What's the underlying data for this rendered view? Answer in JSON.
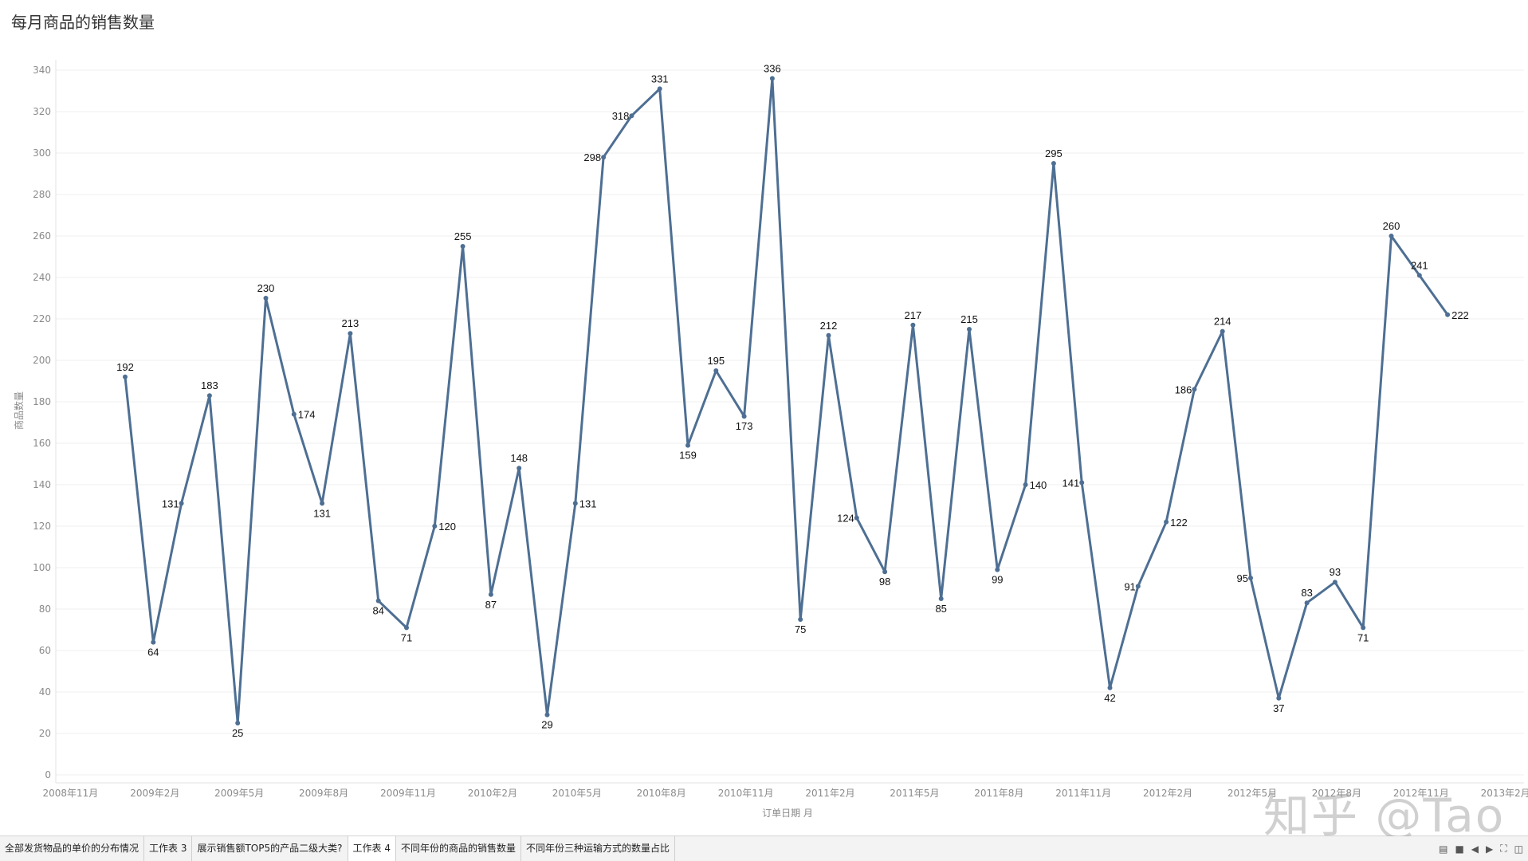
{
  "title": "每月商品的销售数量",
  "chart_data": {
    "type": "line",
    "title": "每月商品的销售数量",
    "xlabel": "订单日期 月",
    "ylabel": "商品数量",
    "ylim": [
      0,
      350
    ],
    "yticks": [
      0,
      20,
      40,
      60,
      80,
      100,
      120,
      140,
      160,
      180,
      200,
      220,
      240,
      260,
      280,
      300,
      320,
      340
    ],
    "x": [
      "2009年1月",
      "2009年2月",
      "2009年3月",
      "2009年4月",
      "2009年5月",
      "2009年6月",
      "2009年7月",
      "2009年8月",
      "2009年9月",
      "2009年10月",
      "2009年11月",
      "2009年12月",
      "2010年1月",
      "2010年2月",
      "2010年3月",
      "2010年4月",
      "2010年5月",
      "2010年6月",
      "2010年7月",
      "2010年8月",
      "2010年9月",
      "2010年10月",
      "2010年11月",
      "2010年12月",
      "2011年1月",
      "2011年2月",
      "2011年3月",
      "2011年4月",
      "2011年5月",
      "2011年6月",
      "2011年7月",
      "2011年8月",
      "2011年9月",
      "2011年10月",
      "2011年11月",
      "2011年12月",
      "2012年1月",
      "2012年2月",
      "2012年3月",
      "2012年4月",
      "2012年5月",
      "2012年6月",
      "2012年7月",
      "2012年8月",
      "2012年9月",
      "2012年10月",
      "2012年11月",
      "2012年12月"
    ],
    "values": [
      192,
      64,
      131,
      183,
      25,
      230,
      174,
      131,
      213,
      84,
      71,
      120,
      255,
      87,
      148,
      29,
      131,
      298,
      318,
      331,
      159,
      195,
      173,
      336,
      75,
      212,
      124,
      98,
      217,
      85,
      215,
      99,
      140,
      295,
      141,
      42,
      91,
      122,
      186,
      214,
      95,
      37,
      83,
      93,
      71,
      260,
      241,
      222
    ],
    "label_pos": [
      "t",
      "b",
      "l",
      "t",
      "b",
      "t",
      "r",
      "b",
      "t",
      "b",
      "b",
      "r",
      "t",
      "b",
      "t",
      "b",
      "r",
      "l",
      "l",
      "t",
      "b",
      "t",
      "b",
      "t",
      "b",
      "t",
      "l",
      "b",
      "t",
      "b",
      "t",
      "b",
      "r",
      "t",
      "l",
      "b",
      "l",
      "r",
      "l",
      "t",
      "l",
      "b",
      "t",
      "t",
      "b",
      "t",
      "t",
      "r"
    ],
    "xticks": [
      "2008年11月",
      "2009年2月",
      "2009年5月",
      "2009年8月",
      "2009年11月",
      "2010年2月",
      "2010年5月",
      "2010年8月",
      "2010年11月",
      "2011年2月",
      "2011年5月",
      "2011年8月",
      "2011年11月",
      "2012年2月",
      "2012年5月",
      "2012年8月",
      "2012年11月",
      "2013年2月"
    ],
    "line_color": "#4e6f93",
    "grid": true
  },
  "tabs": [
    {
      "label": "全部发货物品的单价的分布情况",
      "active": false
    },
    {
      "label": "工作表 3",
      "active": false
    },
    {
      "label": "展示销售额TOP5的产品二级大类?",
      "active": false
    },
    {
      "label": "工作表 4",
      "active": true
    },
    {
      "label": "不同年份的商品的销售数量",
      "active": false
    },
    {
      "label": "不同年份三种运输方式的数量占比",
      "active": false
    }
  ],
  "nav_icons": [
    "grid-view-icon",
    "filmstrip-icon",
    "prev-arrow-icon",
    "next-arrow-icon",
    "fullscreen-icon",
    "presentation-icon"
  ],
  "watermark": "知乎 @Tao"
}
